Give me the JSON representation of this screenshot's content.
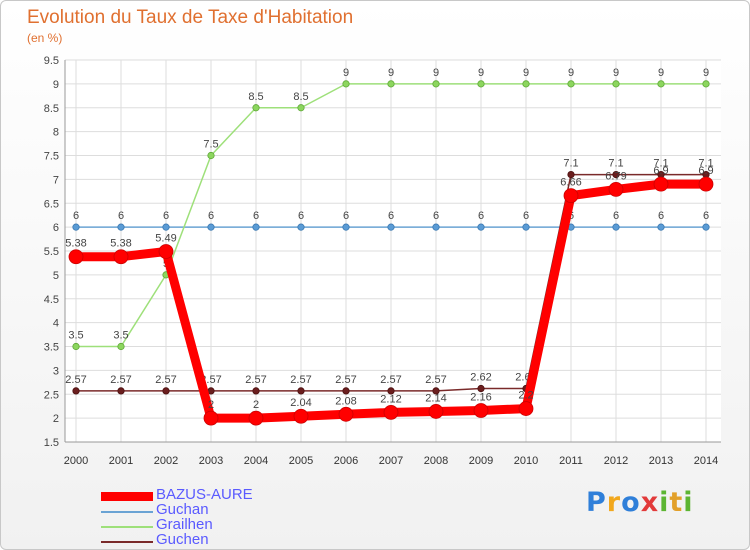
{
  "title": "Evolution du Taux de Taxe d'Habitation",
  "subtitle": "(en %)",
  "logo": {
    "letters": [
      "P",
      "r",
      "o",
      "x",
      "i",
      "t",
      "i"
    ],
    "colors": [
      "#2f7fd9",
      "#f2a81d",
      "#2f7fd9",
      "#e23a3a",
      "#5cb532",
      "#e2a02a",
      "#5cb532"
    ]
  },
  "chart_data": {
    "type": "line",
    "title": "Evolution du Taux de Taxe d'Habitation",
    "ylabel": "(en %)",
    "xlabel": "",
    "x": [
      "2000",
      "2001",
      "2002",
      "2003",
      "2004",
      "2005",
      "2006",
      "2007",
      "2008",
      "2009",
      "2010",
      "2011",
      "2012",
      "2013",
      "2014"
    ],
    "ylim": [
      1.5,
      9.5
    ],
    "yticks": [
      "1.5",
      "2",
      "2.5",
      "3",
      "3.5",
      "4",
      "4.5",
      "5",
      "5.5",
      "6",
      "6.5",
      "7",
      "7.5",
      "8",
      "8.5",
      "9",
      "9.5"
    ],
    "series": [
      {
        "name": "Guchan",
        "color": "#6aa3d4",
        "values": [
          6,
          6,
          6,
          6,
          6,
          6,
          6,
          6,
          6,
          6,
          6,
          6,
          6,
          6,
          6
        ],
        "labels": [
          "6",
          "6",
          "6",
          "6",
          "6",
          "6",
          "6",
          "6",
          "6",
          "6",
          "6",
          "6",
          "6",
          "6",
          "6"
        ]
      },
      {
        "name": "Grailhen",
        "color": "#9ee07a",
        "values": [
          3.5,
          3.5,
          5,
          7.5,
          8.5,
          8.5,
          9,
          9,
          9,
          9,
          9,
          9,
          9,
          9,
          9
        ],
        "labels": [
          "3.5",
          "3.5",
          "5",
          "7.5",
          "8.5",
          "8.5",
          "9",
          "9",
          "9",
          "9",
          "9",
          "9",
          "9",
          "9",
          "9"
        ]
      },
      {
        "name": "Guchen",
        "color": "#7a2a2a",
        "values": [
          2.57,
          2.57,
          2.57,
          2.57,
          2.57,
          2.57,
          2.57,
          2.57,
          2.57,
          2.62,
          2.62,
          7.1,
          7.1,
          7.1,
          7.1
        ],
        "labels": [
          "2.57",
          "2.57",
          "2.57",
          "2.57",
          "2.57",
          "2.57",
          "2.57",
          "2.57",
          "2.57",
          "2.62",
          "2.62",
          "7.1",
          "7.1",
          "7.1",
          "7.1"
        ]
      },
      {
        "name": "BAZUS-AURE",
        "color": "#ff0000",
        "values": [
          5.38,
          5.38,
          5.49,
          2,
          2,
          2.04,
          2.08,
          2.12,
          2.14,
          2.16,
          2.2,
          6.66,
          6.79,
          6.9,
          6.9
        ],
        "labels": [
          "5.38",
          "5.38",
          "5.49",
          "2",
          "2",
          "2.04",
          "2.08",
          "2.12",
          "2.14",
          "2.16",
          "2.2",
          "6.66",
          "6.79",
          "6.9",
          "6.9"
        ]
      }
    ],
    "legend": [
      "BAZUS-AURE",
      "Guchan",
      "Grailhen",
      "Guchen"
    ]
  }
}
